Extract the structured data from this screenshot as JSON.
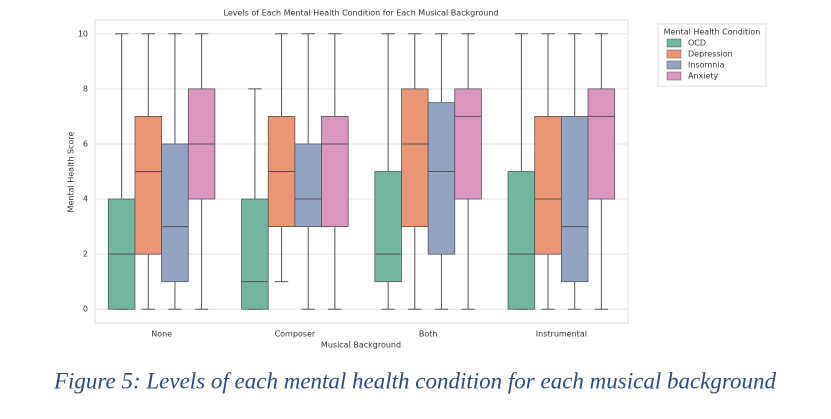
{
  "chart_data": {
    "type": "box",
    "title": "Levels of Each Mental Health Condition for Each Musical Background",
    "x_label": "Musical Background",
    "y_label": "Mental Health Score",
    "categories": [
      "None",
      "Composer",
      "Both",
      "Instrumental"
    ],
    "legend_title": "Mental Health Condition",
    "legend_position": "outside-upper-right",
    "grid": true,
    "ylim": [
      -0.5,
      10.5
    ],
    "yticks": [
      0,
      2,
      4,
      6,
      8,
      10
    ],
    "series": [
      {
        "name": "OCD",
        "color": "#72b6a1",
        "min": [
          0,
          0,
          0,
          0
        ],
        "q1": [
          0,
          0,
          1,
          0
        ],
        "median": [
          2,
          1,
          2,
          2
        ],
        "q3": [
          4,
          4,
          5,
          5
        ],
        "max": [
          10,
          8,
          10,
          10
        ]
      },
      {
        "name": "Depression",
        "color": "#e99675",
        "min": [
          0,
          1,
          0,
          0
        ],
        "q1": [
          2,
          3,
          3,
          2
        ],
        "median": [
          5,
          5,
          6,
          4
        ],
        "q3": [
          7,
          7,
          8,
          7
        ],
        "max": [
          10,
          10,
          10,
          10
        ]
      },
      {
        "name": "Insomnia",
        "color": "#95a3c3",
        "min": [
          0,
          0,
          0,
          0
        ],
        "q1": [
          1,
          3,
          2,
          1
        ],
        "median": [
          3,
          4,
          5,
          3
        ],
        "q3": [
          6,
          6,
          7.5,
          7
        ],
        "max": [
          10,
          10,
          10,
          10
        ]
      },
      {
        "name": "Anxiety",
        "color": "#db96c0",
        "min": [
          0,
          0,
          0,
          0
        ],
        "q1": [
          4,
          3,
          4,
          4
        ],
        "median": [
          6,
          6,
          7,
          7
        ],
        "q3": [
          8,
          7,
          8,
          8
        ],
        "max": [
          10,
          10,
          10,
          10
        ]
      }
    ]
  },
  "caption": "Figure 5: Levels of each mental health condition for each musical background"
}
